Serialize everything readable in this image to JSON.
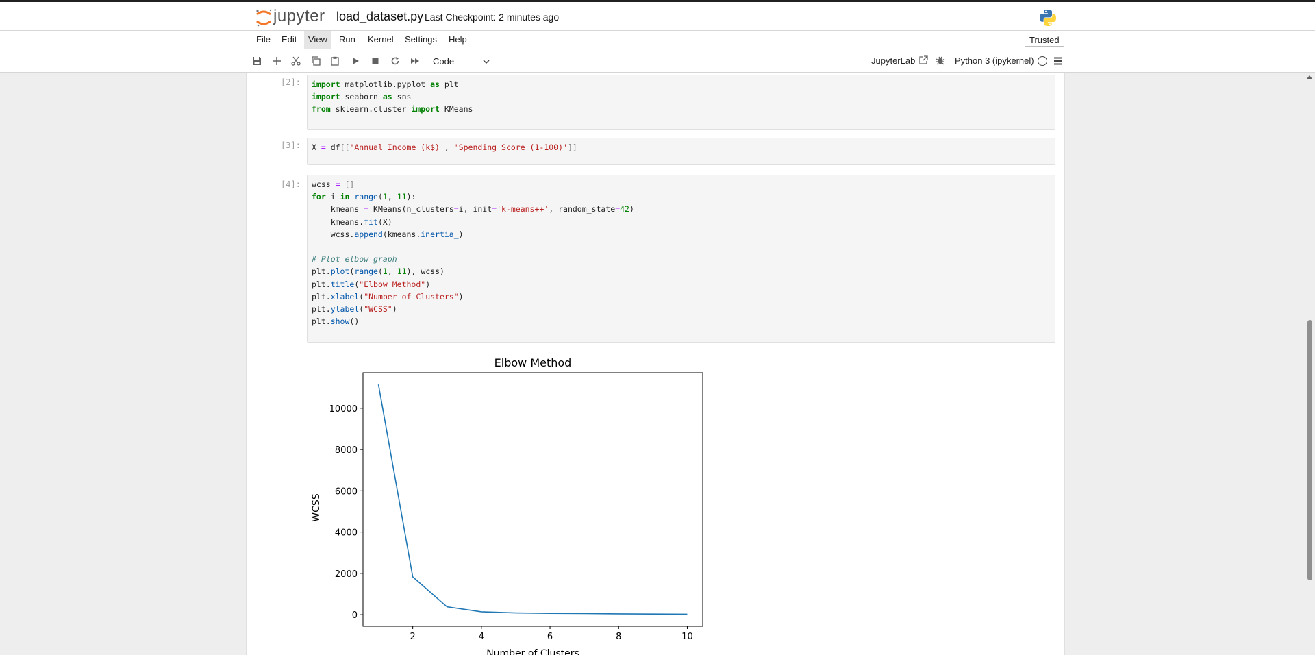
{
  "header": {
    "logo_text": "jupyter",
    "notebook_title": "load_dataset.py",
    "checkpoint": "Last Checkpoint: 2 minutes ago"
  },
  "menu": {
    "items": [
      "File",
      "Edit",
      "View",
      "Run",
      "Kernel",
      "Settings",
      "Help"
    ],
    "active": "View",
    "trusted_label": "Trusted"
  },
  "toolbar": {
    "cell_type": "Code",
    "jupyterlab_label": "JupyterLab",
    "kernel_name": "Python 3 (ipykernel)"
  },
  "cells": [
    {
      "prompt": "[2]:",
      "lines": [
        "import matplotlib.pyplot as plt",
        "import seaborn as sns",
        "from sklearn.cluster import KMeans"
      ]
    },
    {
      "prompt": "[3]:",
      "lines": [
        "X = df[['Annual Income (k$)', 'Spending Score (1-100)']]"
      ]
    },
    {
      "prompt": "[4]:",
      "lines": [
        "wcss = []",
        "for i in range(1, 11):",
        "    kmeans = KMeans(n_clusters=i, init='k-means++', random_state=42)",
        "    kmeans.fit(X)",
        "    wcss.append(kmeans.inertia_)",
        "",
        "# Plot elbow graph",
        "plt.plot(range(1, 11), wcss)",
        "plt.title(\"Elbow Method\")",
        "plt.xlabel(\"Number of Clusters\")",
        "plt.ylabel(\"WCSS\")",
        "plt.show()"
      ]
    }
  ],
  "chart_data": {
    "type": "line",
    "title": "Elbow Method",
    "xlabel": "Number of Clusters",
    "ylabel": "WCSS",
    "x": [
      1,
      2,
      3,
      4,
      5,
      6,
      7,
      8,
      9,
      10
    ],
    "series": [
      {
        "values": [
          11150,
          1830,
          380,
          140,
          85,
          65,
          55,
          40,
          30,
          25
        ],
        "color": "#1f77b4"
      }
    ],
    "xlim": [
      0.55,
      10.45
    ],
    "ylim": [
      -560,
      11720
    ],
    "xticks": [
      2,
      4,
      6,
      8,
      10
    ],
    "yticks": [
      0,
      2000,
      4000,
      6000,
      8000,
      10000
    ],
    "grid": false,
    "legend": "none"
  },
  "colors": {
    "accent": "#f37726",
    "line": "#1f77b4",
    "keyword": "#008000",
    "string": "#ba2121"
  }
}
